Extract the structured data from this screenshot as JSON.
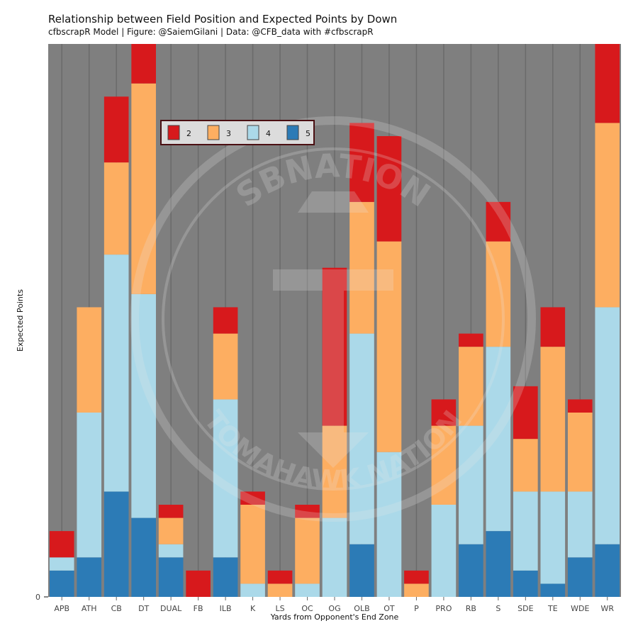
{
  "chart_data": {
    "type": "bar",
    "stacked": true,
    "title": "Relationship between Field Position and Expected Points by Down",
    "subtitle": "cfbscrapR Model | Figure: @SaiemGilani | Data: @CFB_data with #cfbscrapR",
    "xlabel": "Yards from Opponent's End Zone",
    "ylabel": "Expected Points",
    "y_tick_labels": [
      "0"
    ],
    "ylim": [
      0,
      42
    ],
    "grid": "vertical",
    "legend_position": "top-left",
    "categories": [
      "APB",
      "ATH",
      "CB",
      "DT",
      "DUAL",
      "FB",
      "ILB",
      "K",
      "LS",
      "OC",
      "OG",
      "OLB",
      "OT",
      "P",
      "PRO",
      "RB",
      "S",
      "SDE",
      "TE",
      "WDE",
      "WR"
    ],
    "series": [
      {
        "name": "5",
        "color": "#2c7bb6",
        "values": [
          2,
          3,
          8,
          6,
          3,
          0,
          3,
          0,
          0,
          0,
          0,
          4,
          0,
          0,
          0,
          4,
          5,
          2,
          1,
          3,
          4
        ]
      },
      {
        "name": "4",
        "color": "#abd9e9",
        "values": [
          1,
          11,
          18,
          17,
          1,
          0,
          12,
          1,
          0,
          1,
          6,
          16,
          11,
          0,
          7,
          9,
          14,
          6,
          7,
          5,
          18
        ]
      },
      {
        "name": "3",
        "color": "#fdae61",
        "values": [
          0,
          8,
          7,
          16,
          2,
          0,
          5,
          6,
          1,
          5,
          7,
          10,
          16,
          1,
          6,
          6,
          8,
          4,
          11,
          6,
          14
        ]
      },
      {
        "name": "2",
        "color": "#d7191c",
        "values": [
          2,
          0,
          5,
          3,
          1,
          2,
          2,
          1,
          1,
          1,
          12,
          6,
          8,
          1,
          2,
          1,
          3,
          4,
          3,
          1,
          6
        ]
      }
    ],
    "watermark": {
      "top_text": "SBNATION",
      "bottom_text": "TOMAHAWK NATION"
    }
  }
}
